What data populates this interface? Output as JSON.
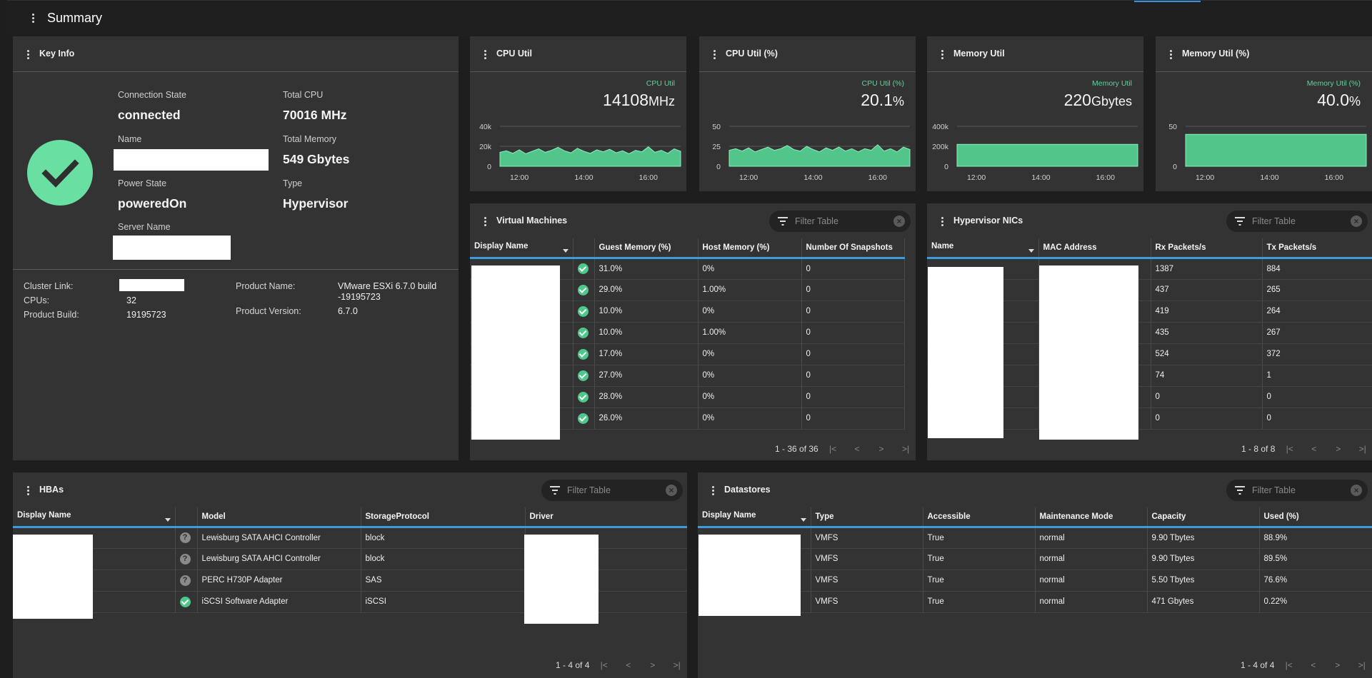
{
  "page": {
    "title": "Summary"
  },
  "key_info": {
    "title": "Key Info",
    "connection_state_label": "Connection State",
    "connection_state": "connected",
    "total_cpu_label": "Total CPU",
    "total_cpu": "70016 MHz",
    "name_label": "Name",
    "total_memory_label": "Total Memory",
    "total_memory": "549 Gbytes",
    "power_state_label": "Power State",
    "power_state": "poweredOn",
    "type_label": "Type",
    "type": "Hypervisor",
    "server_name_label": "Server Name",
    "cluster_link_label": "Cluster Link:",
    "cpus_label": "CPUs:",
    "cpus": "32",
    "product_build_label": "Product Build:",
    "product_build": "19195723",
    "product_name_label": "Product Name:",
    "product_name_line1": "VMware ESXi 6.7.0 build",
    "product_name_line2": "-19195723",
    "product_version_label": "Product Version:",
    "product_version": "6.7.0",
    "status_icon": "check-circle-icon",
    "status_color": "#69dfa2"
  },
  "metrics": [
    {
      "title": "CPU Util",
      "caption": "CPU Util",
      "value": "14108",
      "unit": "MHz"
    },
    {
      "title": "CPU Util (%)",
      "caption": "CPU Util (%)",
      "value": "20.1",
      "unit": "%"
    },
    {
      "title": "Memory Util",
      "caption": "Memory Util",
      "value": "220",
      "unit": "Gbytes"
    },
    {
      "title": "Memory Util (%)",
      "caption": "Memory Util (%)",
      "value": "40.0",
      "unit": "%"
    }
  ],
  "chart_data": [
    {
      "type": "area",
      "title": "CPU Util",
      "x_ticks": [
        "12:00",
        "14:00",
        "16:00"
      ],
      "y_ticks": [
        "0",
        "20k",
        "40k"
      ],
      "ylim": [
        0,
        40000
      ],
      "color": "#52c58b",
      "x": [
        11.4,
        11.6,
        11.8,
        12.0,
        12.2,
        12.4,
        12.6,
        12.8,
        13.0,
        13.2,
        13.4,
        13.6,
        13.8,
        14.0,
        14.2,
        14.4,
        14.6,
        14.8,
        15.0,
        15.2,
        15.4,
        15.6,
        15.8,
        16.0,
        16.2,
        16.4,
        16.6,
        16.8,
        17.0
      ],
      "values": [
        14000,
        15500,
        13000,
        16500,
        12500,
        15000,
        17500,
        14000,
        16000,
        19000,
        15500,
        13500,
        18000,
        15000,
        13000,
        16500,
        14500,
        17000,
        13500,
        15500,
        12500,
        16000,
        14500,
        19500,
        14000,
        16000,
        13000,
        17500,
        15000
      ],
      "grid": true
    },
    {
      "type": "area",
      "title": "CPU Util (%)",
      "x_ticks": [
        "12:00",
        "14:00",
        "16:00"
      ],
      "y_ticks": [
        "0",
        "25",
        "50"
      ],
      "ylim": [
        0,
        50
      ],
      "color": "#52c58b",
      "x": [
        11.4,
        11.6,
        11.8,
        12.0,
        12.2,
        12.4,
        12.6,
        12.8,
        13.0,
        13.2,
        13.4,
        13.6,
        13.8,
        14.0,
        14.2,
        14.4,
        14.6,
        14.8,
        15.0,
        15.2,
        15.4,
        15.6,
        15.8,
        16.0,
        16.2,
        16.4,
        16.6,
        16.8,
        17.0
      ],
      "values": [
        20,
        22,
        19,
        23,
        18,
        21,
        24,
        20,
        22,
        26,
        21,
        19,
        25,
        21,
        18,
        23,
        20,
        24,
        19,
        22,
        18,
        22,
        20,
        27,
        19,
        22,
        18,
        24,
        21
      ],
      "grid": true
    },
    {
      "type": "area",
      "title": "Memory Util",
      "x_ticks": [
        "12:00",
        "14:00",
        "16:00"
      ],
      "y_ticks": [
        "0",
        "200k",
        "400k"
      ],
      "ylim": [
        0,
        400000
      ],
      "color": "#52c58b",
      "x": [
        11.4,
        17.0
      ],
      "values": [
        220000,
        220000
      ],
      "grid": true
    },
    {
      "type": "area",
      "title": "Memory Util (%)",
      "x_ticks": [
        "12:00",
        "14:00",
        "16:00"
      ],
      "y_ticks": [
        "0",
        "50"
      ],
      "ylim": [
        0,
        50
      ],
      "color": "#52c58b",
      "x": [
        11.4,
        17.0
      ],
      "values": [
        40,
        40
      ],
      "grid": true
    }
  ],
  "vms": {
    "title": "Virtual Machines",
    "filter_placeholder": "Filter Table",
    "columns": [
      "Display Name",
      "",
      "Guest Memory (%)",
      "Host Memory (%)",
      "Number Of Snapshots"
    ],
    "rows": [
      {
        "guest": "31.0%",
        "host": "0%",
        "snap": "0"
      },
      {
        "guest": "29.0%",
        "host": "1.00%",
        "snap": "0"
      },
      {
        "guest": "10.0%",
        "host": "0%",
        "snap": "0"
      },
      {
        "guest": "10.0%",
        "host": "1.00%",
        "snap": "0"
      },
      {
        "guest": "17.0%",
        "host": "0%",
        "snap": "0"
      },
      {
        "guest": "27.0%",
        "host": "0%",
        "snap": "0"
      },
      {
        "guest": "28.0%",
        "host": "0%",
        "snap": "0"
      },
      {
        "guest": "26.0%",
        "host": "0%",
        "snap": "0"
      }
    ],
    "pager": "1 - 36 of 36"
  },
  "nics": {
    "title": "Hypervisor NICs",
    "filter_placeholder": "Filter Table",
    "columns": [
      "Name",
      "MAC Address",
      "Rx Packets/s",
      "Tx Packets/s"
    ],
    "rows": [
      {
        "rx": "1387",
        "tx": "884"
      },
      {
        "rx": "437",
        "tx": "265"
      },
      {
        "rx": "419",
        "tx": "264"
      },
      {
        "rx": "435",
        "tx": "267"
      },
      {
        "rx": "524",
        "tx": "372"
      },
      {
        "rx": "74",
        "tx": "1"
      },
      {
        "rx": "0",
        "tx": "0"
      },
      {
        "rx": "0",
        "tx": "0"
      }
    ],
    "pager": "1 - 8 of 8"
  },
  "hbas": {
    "title": "HBAs",
    "filter_placeholder": "Filter Table",
    "columns": [
      "Display Name",
      "",
      "Model",
      "StorageProtocol",
      "Driver"
    ],
    "rows": [
      {
        "status": "unknown",
        "model": "Lewisburg SATA AHCI Controller",
        "protocol": "block"
      },
      {
        "status": "unknown",
        "model": "Lewisburg SATA AHCI Controller",
        "protocol": "block"
      },
      {
        "status": "unknown",
        "model": "PERC H730P Adapter",
        "protocol": "SAS"
      },
      {
        "status": "ok",
        "model": "iSCSI Software Adapter",
        "protocol": "iSCSI"
      }
    ],
    "pager": "1 - 4 of 4"
  },
  "datastores": {
    "title": "Datastores",
    "filter_placeholder": "Filter Table",
    "columns": [
      "Display Name",
      "Type",
      "Accessible",
      "Maintenance Mode",
      "Capacity",
      "Used (%)"
    ],
    "rows": [
      {
        "type": "VMFS",
        "accessible": "True",
        "mode": "normal",
        "capacity": "9.90 Tbytes",
        "used": "88.9%"
      },
      {
        "type": "VMFS",
        "accessible": "True",
        "mode": "normal",
        "capacity": "9.90 Tbytes",
        "used": "89.5%"
      },
      {
        "type": "VMFS",
        "accessible": "True",
        "mode": "normal",
        "capacity": "5.50 Tbytes",
        "used": "76.6%"
      },
      {
        "type": "VMFS",
        "accessible": "True",
        "mode": "normal",
        "capacity": "471 Gbytes",
        "used": "0.22%"
      }
    ],
    "pager": "1 - 4 of 4"
  }
}
